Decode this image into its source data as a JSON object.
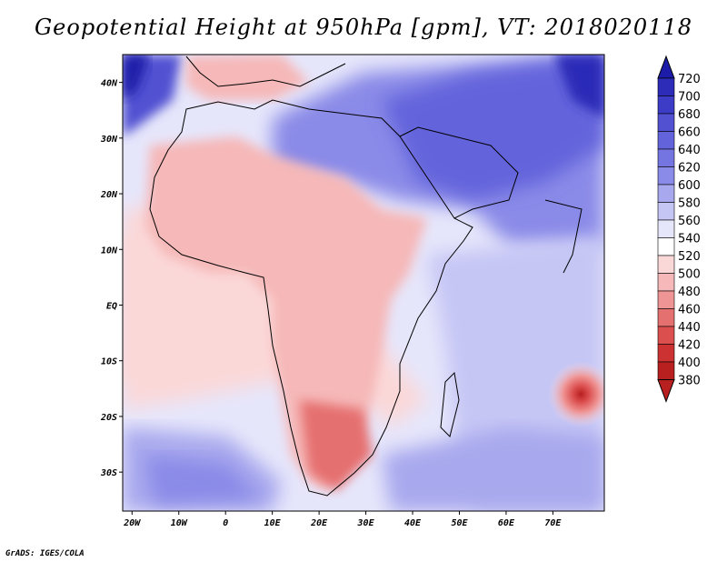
{
  "title": "Geopotential Height at 950hPa [gpm], VT: 2018020118",
  "credit": "GrADS: IGES/COLA",
  "map": {
    "variable": "Geopotential Height",
    "level": "950hPa",
    "units": "gpm",
    "valid_time": "2018020118",
    "lon_range": [
      -22,
      81
    ],
    "lat_range": [
      -37,
      45
    ],
    "lon_ticks": [
      "20W",
      "10W",
      "0",
      "10E",
      "20E",
      "30E",
      "40E",
      "50E",
      "60E",
      "70E"
    ],
    "lat_ticks": [
      "40N",
      "30N",
      "20N",
      "10N",
      "EQ",
      "10S",
      "20S",
      "30S"
    ],
    "low_center": {
      "lon": 76,
      "lat": -16,
      "label": "deep low near 380-440 gpm"
    }
  },
  "colorbar": {
    "levels": [
      "720",
      "700",
      "680",
      "660",
      "640",
      "620",
      "600",
      "580",
      "560",
      "540",
      "520",
      "500",
      "480",
      "460",
      "440",
      "420",
      "400",
      "380"
    ],
    "colors": [
      "#1c1ca8",
      "#2c2cb8",
      "#3c3cc6",
      "#5151d2",
      "#6363dc",
      "#7575e2",
      "#8a8ae8",
      "#a8a8ee",
      "#c6c6f5",
      "#e6e6fb",
      "#ffffff",
      "#fbd8d8",
      "#f6b8b8",
      "#ef9595",
      "#e57070",
      "#dc4f4f",
      "#cd3232",
      "#b81f1f"
    ]
  }
}
